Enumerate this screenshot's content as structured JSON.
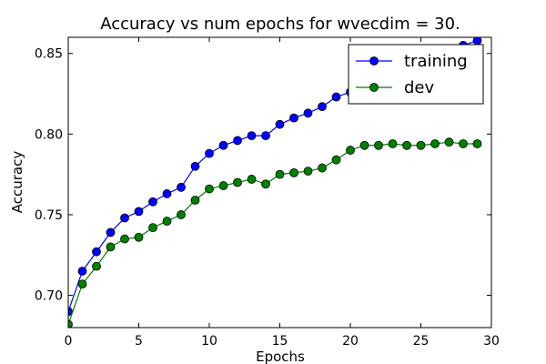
{
  "chart_data": {
    "type": "line",
    "title": "Accuracy vs num epochs for wvecdim = 30.",
    "xlabel": "Epochs",
    "ylabel": "Accuracy",
    "xlim": [
      0,
      30
    ],
    "ylim": [
      0.68,
      0.86
    ],
    "xticks": [
      0,
      5,
      10,
      15,
      20,
      25,
      30
    ],
    "yticks": [
      0.7,
      0.75,
      0.8,
      0.85
    ],
    "xtick_labels": [
      "0",
      "5",
      "10",
      "15",
      "20",
      "25",
      "30"
    ],
    "ytick_labels": [
      "0.70",
      "0.75",
      "0.80",
      "0.85"
    ],
    "grid": false,
    "legend_position": "top-right",
    "x": [
      0,
      1,
      2,
      3,
      4,
      5,
      6,
      7,
      8,
      9,
      10,
      11,
      12,
      13,
      14,
      15,
      16,
      17,
      18,
      19,
      20,
      21,
      22,
      23,
      24,
      25,
      26,
      27,
      28,
      29
    ],
    "series": [
      {
        "name": "training",
        "color": "#0000ff",
        "values": [
          0.69,
          0.715,
          0.727,
          0.739,
          0.748,
          0.752,
          0.758,
          0.763,
          0.767,
          0.78,
          0.788,
          0.793,
          0.796,
          0.799,
          0.799,
          0.806,
          0.81,
          0.813,
          0.817,
          0.823,
          0.826,
          0.832,
          0.836,
          0.84,
          0.843,
          0.846,
          0.849,
          0.852,
          0.855,
          0.858
        ]
      },
      {
        "name": "dev",
        "color": "#008000",
        "values": [
          0.682,
          0.707,
          0.718,
          0.73,
          0.735,
          0.736,
          0.742,
          0.746,
          0.75,
          0.759,
          0.766,
          0.768,
          0.77,
          0.772,
          0.769,
          0.775,
          0.776,
          0.777,
          0.779,
          0.784,
          0.79,
          0.793,
          0.793,
          0.794,
          0.793,
          0.793,
          0.794,
          0.795,
          0.794,
          0.794
        ]
      }
    ]
  }
}
